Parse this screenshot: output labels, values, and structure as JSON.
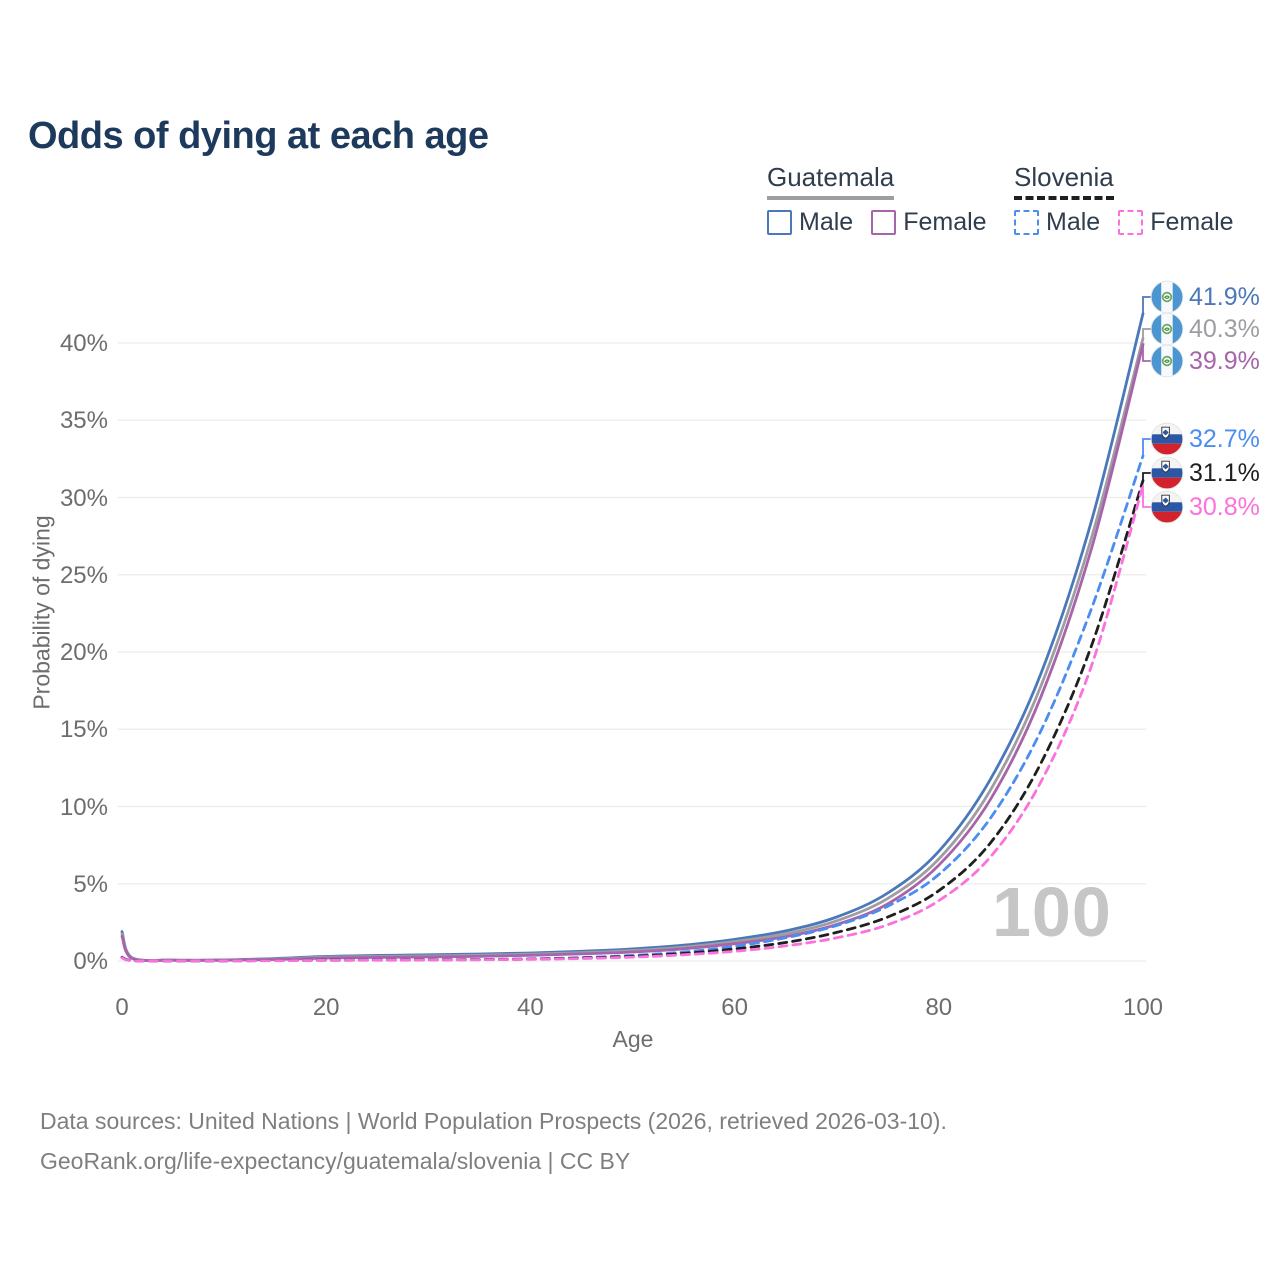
{
  "title": "Odds of dying at each age",
  "legend": {
    "guatemala": {
      "name": "Guatemala",
      "line_color": "#9d9da2",
      "line_style": "solid",
      "male_label": "Male",
      "male_color": "#4b78bb",
      "female_label": "Female",
      "female_color": "#a864aa"
    },
    "slovenia": {
      "name": "Slovenia",
      "line_color": "#1f1f1f",
      "line_style": "dashed",
      "male_label": "Male",
      "male_color": "#4c8df2",
      "female_label": "Female",
      "female_color": "#fb71dd"
    }
  },
  "axes": {
    "x_label": "Age",
    "y_label": "Probability of dying",
    "x_ticks": [
      "0",
      "20",
      "40",
      "60",
      "80",
      "100"
    ],
    "y_ticks": [
      "0%",
      "5%",
      "10%",
      "15%",
      "20%",
      "25%",
      "30%",
      "35%",
      "40%"
    ]
  },
  "watermark": "100",
  "footer": {
    "line1": "Data sources: United Nations | World Population Prospects (2026, retrieved 2026-03-10).",
    "line2": "GeoRank.org/life-expectancy/guatemala/slovenia | CC BY"
  },
  "chart_data": {
    "type": "line",
    "title": "Odds of dying at each age",
    "xlabel": "Age",
    "ylabel": "Probability of dying",
    "xlim": [
      0,
      100
    ],
    "ylim": [
      0,
      43
    ],
    "grid": "horizontal",
    "x_ages": [
      0,
      1,
      5,
      10,
      15,
      20,
      25,
      30,
      35,
      40,
      45,
      50,
      55,
      60,
      65,
      70,
      75,
      80,
      85,
      90,
      95,
      100
    ],
    "series": [
      {
        "id": "guatemala-male",
        "country": "Guatemala",
        "sex": "Male",
        "flag": "guatemala",
        "color": "#4b78bb",
        "dash": false,
        "end_label": "41.9%",
        "values": [
          1.9,
          0.2,
          0.06,
          0.07,
          0.16,
          0.3,
          0.36,
          0.4,
          0.45,
          0.52,
          0.63,
          0.78,
          1.02,
          1.4,
          1.95,
          2.85,
          4.4,
          7.1,
          11.7,
          18.6,
          28.6,
          41.9
        ]
      },
      {
        "id": "guatemala-total",
        "country": "Guatemala",
        "sex": "Both sexes",
        "flag": "guatemala",
        "color": "#9d9da2",
        "dash": false,
        "end_label": "40.3%",
        "values": [
          1.75,
          0.18,
          0.05,
          0.06,
          0.13,
          0.25,
          0.3,
          0.33,
          0.38,
          0.44,
          0.54,
          0.68,
          0.9,
          1.26,
          1.76,
          2.6,
          4.05,
          6.6,
          11.0,
          17.8,
          27.5,
          40.3
        ]
      },
      {
        "id": "guatemala-female",
        "country": "Guatemala",
        "sex": "Female",
        "flag": "guatemala",
        "color": "#a864aa",
        "dash": false,
        "end_label": "39.9%",
        "values": [
          1.6,
          0.16,
          0.05,
          0.05,
          0.1,
          0.19,
          0.23,
          0.26,
          0.3,
          0.37,
          0.46,
          0.58,
          0.79,
          1.12,
          1.58,
          2.36,
          3.7,
          6.2,
          10.4,
          17.1,
          26.8,
          39.9
        ]
      },
      {
        "id": "slovenia-male",
        "country": "Slovenia",
        "sex": "Male",
        "flag": "slovenia",
        "color": "#4c8df2",
        "dash": true,
        "end_label": "32.7%",
        "values": [
          0.25,
          0.03,
          0.01,
          0.01,
          0.03,
          0.06,
          0.07,
          0.08,
          0.1,
          0.14,
          0.22,
          0.36,
          0.58,
          0.95,
          1.5,
          2.3,
          3.55,
          5.6,
          9.2,
          14.9,
          22.9,
          32.7
        ]
      },
      {
        "id": "slovenia-total",
        "country": "Slovenia",
        "sex": "Both sexes",
        "flag": "slovenia",
        "color": "#1f1f1f",
        "dash": true,
        "end_label": "31.1%",
        "values": [
          0.22,
          0.03,
          0.01,
          0.01,
          0.03,
          0.05,
          0.06,
          0.07,
          0.09,
          0.12,
          0.19,
          0.3,
          0.49,
          0.78,
          1.2,
          1.85,
          2.85,
          4.55,
          7.6,
          12.8,
          20.5,
          31.1
        ]
      },
      {
        "id": "slovenia-female",
        "country": "Slovenia",
        "sex": "Female",
        "flag": "slovenia",
        "color": "#fb71dd",
        "dash": true,
        "end_label": "30.8%",
        "values": [
          0.2,
          0.02,
          0.01,
          0.01,
          0.02,
          0.04,
          0.05,
          0.06,
          0.08,
          0.11,
          0.16,
          0.25,
          0.4,
          0.63,
          0.98,
          1.5,
          2.35,
          3.9,
          6.7,
          11.6,
          19.2,
          30.8
        ]
      }
    ]
  }
}
